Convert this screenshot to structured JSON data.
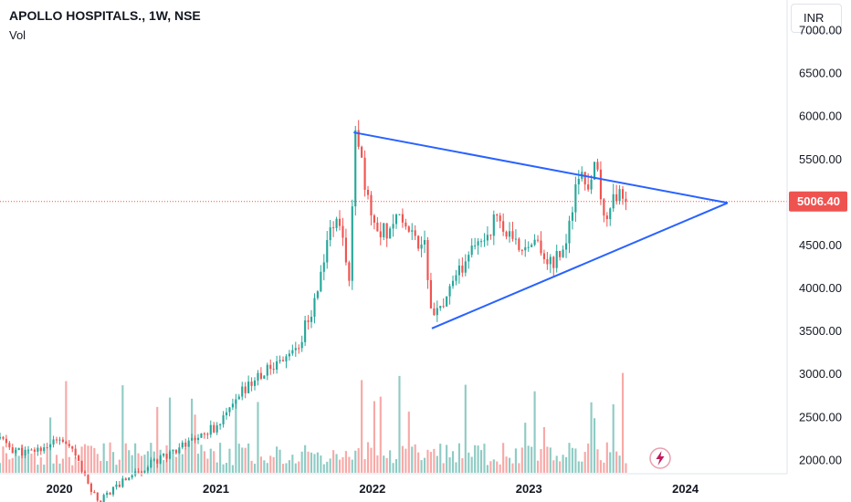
{
  "header": {
    "title": "APOLLO HOSPITALS., 1W, NSE",
    "volume_label": "Vol"
  },
  "currency_button": "INR",
  "chart_data": {
    "type": "candlestick",
    "symbol": "APOLLO HOSPITALS.",
    "interval": "1W",
    "exchange": "NSE",
    "currency": "INR",
    "last_price": 5006.4,
    "last_price_label": "5006.40",
    "y_ticks": [
      "7000.00",
      "6500.00",
      "6000.00",
      "5500.00",
      "5000.00",
      "4500.00",
      "4000.00",
      "3500.00",
      "3000.00",
      "2500.00",
      "2000.00"
    ],
    "x_ticks": [
      "2020",
      "2021",
      "2022",
      "2023",
      "2024"
    ],
    "ylim": [
      1840,
      7350
    ],
    "xlim": [
      2019.62,
      2024.65
    ],
    "price_series_approx": [
      [
        2019.62,
        2250
      ],
      [
        2019.7,
        2120
      ],
      [
        2019.8,
        2080
      ],
      [
        2019.9,
        2150
      ],
      [
        2020.0,
        2230
      ],
      [
        2020.05,
        2150
      ],
      [
        2020.12,
        2000
      ],
      [
        2020.18,
        1720
      ],
      [
        2020.25,
        1520
      ],
      [
        2020.3,
        1600
      ],
      [
        2020.38,
        1720
      ],
      [
        2020.45,
        1820
      ],
      [
        2020.55,
        1920
      ],
      [
        2020.62,
        2000
      ],
      [
        2020.7,
        2080
      ],
      [
        2020.78,
        2170
      ],
      [
        2020.85,
        2240
      ],
      [
        2020.92,
        2320
      ],
      [
        2021.0,
        2380
      ],
      [
        2021.05,
        2480
      ],
      [
        2021.12,
        2650
      ],
      [
        2021.18,
        2820
      ],
      [
        2021.25,
        2950
      ],
      [
        2021.32,
        3020
      ],
      [
        2021.4,
        3150
      ],
      [
        2021.47,
        3250
      ],
      [
        2021.53,
        3330
      ],
      [
        2021.58,
        3600
      ],
      [
        2021.63,
        3820
      ],
      [
        2021.67,
        4150
      ],
      [
        2021.7,
        4450
      ],
      [
        2021.74,
        4700
      ],
      [
        2021.78,
        4900
      ],
      [
        2021.8,
        4550
      ],
      [
        2021.83,
        4350
      ],
      [
        2021.86,
        4100
      ],
      [
        2021.87,
        4850
      ],
      [
        2021.88,
        5700
      ],
      [
        2021.9,
        5800
      ],
      [
        2021.93,
        5450
      ],
      [
        2021.96,
        5050
      ],
      [
        2022.0,
        4850
      ],
      [
        2022.05,
        4700
      ],
      [
        2022.1,
        4650
      ],
      [
        2022.15,
        4900
      ],
      [
        2022.2,
        4800
      ],
      [
        2022.25,
        4650
      ],
      [
        2022.3,
        4500
      ],
      [
        2022.33,
        4700
      ],
      [
        2022.35,
        4150
      ],
      [
        2022.38,
        3750
      ],
      [
        2022.4,
        3650
      ],
      [
        2022.45,
        3800
      ],
      [
        2022.5,
        3950
      ],
      [
        2022.55,
        4150
      ],
      [
        2022.6,
        4350
      ],
      [
        2022.65,
        4450
      ],
      [
        2022.7,
        4550
      ],
      [
        2022.75,
        4700
      ],
      [
        2022.8,
        4850
      ],
      [
        2022.85,
        4650
      ],
      [
        2022.9,
        4500
      ],
      [
        2022.95,
        4450
      ],
      [
        2023.0,
        4600
      ],
      [
        2023.05,
        4500
      ],
      [
        2023.1,
        4350
      ],
      [
        2023.15,
        4300
      ],
      [
        2023.2,
        4400
      ],
      [
        2023.25,
        4600
      ],
      [
        2023.28,
        4950
      ],
      [
        2023.32,
        5300
      ],
      [
        2023.35,
        5200
      ],
      [
        2023.38,
        5250
      ],
      [
        2023.42,
        5350
      ],
      [
        2023.45,
        5200
      ],
      [
        2023.47,
        4900
      ],
      [
        2023.5,
        4850
      ],
      [
        2023.53,
        5050
      ],
      [
        2023.56,
        5100
      ],
      [
        2023.6,
        5000
      ],
      [
        2023.62,
        5006.4
      ]
    ],
    "volume_bar_count": 200,
    "trendlines": [
      {
        "name": "upper",
        "from": [
          2021.88,
          5810
        ],
        "to": [
          2024.27,
          4990
        ]
      },
      {
        "name": "lower",
        "from": [
          2022.38,
          3530
        ],
        "to": [
          2024.27,
          4990
        ]
      }
    ],
    "grid": false,
    "legend": "none"
  },
  "colors": {
    "up": "#26a69a",
    "down": "#ef5350",
    "vol_up": "#8fcbc4",
    "vol_down": "#f7a9a7",
    "trendline": "#2962ff",
    "price_line": "#ef5350",
    "price_label_bg": "#ef5350",
    "axis_border": "#e0e3eb",
    "text": "#131722"
  },
  "icons": {
    "flash": "lightning-bolt-icon"
  }
}
